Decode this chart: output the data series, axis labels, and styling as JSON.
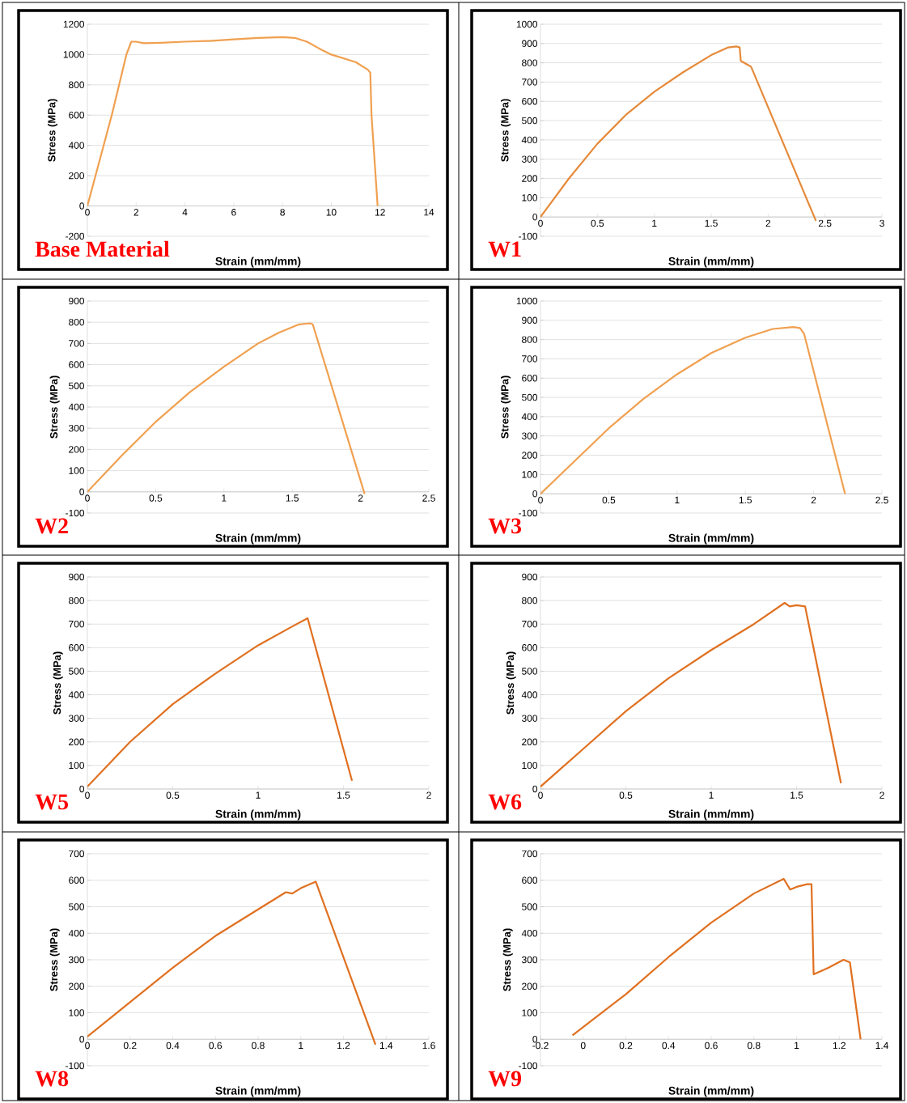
{
  "chart_data": [
    {
      "type": "line",
      "title": "Base Material",
      "xlabel": "Strain (mm/mm)",
      "ylabel": "Stress (MPa)",
      "color": "#f0a050",
      "grid": "y",
      "xlim": [
        0,
        14
      ],
      "ylim": [
        -200,
        1200
      ],
      "xticks": [
        0,
        2,
        4,
        6,
        8,
        10,
        12,
        14
      ],
      "yticks": [
        -200,
        0,
        200,
        400,
        600,
        800,
        1000,
        1200
      ],
      "x": [
        0,
        1.0,
        1.6,
        1.8,
        2.0,
        2.3,
        3,
        4,
        5,
        6,
        7,
        8,
        8.5,
        9,
        9.5,
        10,
        11,
        11.5,
        11.6,
        11.65,
        11.9
      ],
      "values": [
        0,
        600,
        1000,
        1085,
        1085,
        1075,
        1078,
        1085,
        1090,
        1100,
        1110,
        1115,
        1110,
        1085,
        1040,
        1000,
        950,
        900,
        880,
        600,
        0
      ]
    },
    {
      "type": "line",
      "title": "W1",
      "xlabel": "Strain (mm/mm)",
      "ylabel": "Stress (MPa)",
      "color": "#e68a3a",
      "grid": "y",
      "xlim": [
        0,
        3
      ],
      "ylim": [
        -100,
        1000
      ],
      "xticks": [
        0,
        0.5,
        1,
        1.5,
        2,
        2.5,
        3
      ],
      "yticks": [
        -100,
        0,
        100,
        200,
        300,
        400,
        500,
        600,
        700,
        800,
        900,
        1000
      ],
      "x": [
        0,
        0.25,
        0.5,
        0.75,
        1,
        1.25,
        1.5,
        1.65,
        1.72,
        1.75,
        1.76,
        1.82,
        1.85,
        2.42
      ],
      "values": [
        0,
        200,
        380,
        530,
        650,
        750,
        840,
        880,
        885,
        880,
        810,
        790,
        780,
        -20
      ]
    },
    {
      "type": "line",
      "title": "W2",
      "xlabel": "Strain (mm/mm)",
      "ylabel": "Stress (MPa)",
      "color": "#f0a050",
      "grid": "y",
      "xlim": [
        0,
        2.5
      ],
      "ylim": [
        -100,
        900
      ],
      "xticks": [
        0,
        0.5,
        1,
        1.5,
        2,
        2.5
      ],
      "yticks": [
        -100,
        0,
        100,
        200,
        300,
        400,
        500,
        600,
        700,
        800,
        900
      ],
      "x": [
        0,
        0.25,
        0.5,
        0.75,
        1,
        1.25,
        1.4,
        1.55,
        1.63,
        1.65,
        2.03
      ],
      "values": [
        0,
        170,
        330,
        470,
        590,
        700,
        750,
        790,
        795,
        790,
        -10
      ]
    },
    {
      "type": "line",
      "title": "W3",
      "xlabel": "Strain (mm/mm)",
      "ylabel": "Stress (MPa)",
      "color": "#f0a050",
      "grid": "y",
      "xlim": [
        0,
        2.5
      ],
      "ylim": [
        -100,
        1000
      ],
      "xticks": [
        0,
        0.5,
        1,
        1.5,
        2,
        2.5
      ],
      "yticks": [
        -100,
        0,
        100,
        200,
        300,
        400,
        500,
        600,
        700,
        800,
        900,
        1000
      ],
      "x": [
        0,
        0.25,
        0.5,
        0.75,
        1,
        1.25,
        1.5,
        1.7,
        1.85,
        1.9,
        1.93,
        2.23
      ],
      "values": [
        0,
        170,
        340,
        490,
        620,
        730,
        810,
        855,
        865,
        860,
        830,
        0
      ]
    },
    {
      "type": "line",
      "title": "W5",
      "xlabel": "Strain (mm/mm)",
      "ylabel": "Stress (MPa)",
      "color": "#e07020",
      "grid": "y",
      "xlim": [
        0,
        2
      ],
      "ylim": [
        0,
        900
      ],
      "xticks": [
        0,
        0.5,
        1,
        1.5,
        2
      ],
      "yticks": [
        0,
        100,
        200,
        300,
        400,
        500,
        600,
        700,
        800,
        900
      ],
      "x": [
        0,
        0.25,
        0.5,
        0.75,
        1,
        1.2,
        1.29,
        1.55
      ],
      "values": [
        10,
        200,
        360,
        490,
        610,
        690,
        725,
        35
      ]
    },
    {
      "type": "line",
      "title": "W6",
      "xlabel": "Strain (mm/mm)",
      "ylabel": "Stress (MPa)",
      "color": "#e07020",
      "grid": "y",
      "xlim": [
        0,
        2
      ],
      "ylim": [
        0,
        900
      ],
      "xticks": [
        0,
        0.5,
        1,
        1.5,
        2
      ],
      "yticks": [
        0,
        100,
        200,
        300,
        400,
        500,
        600,
        700,
        800,
        900
      ],
      "x": [
        0,
        0.25,
        0.5,
        0.75,
        1,
        1.25,
        1.43,
        1.46,
        1.5,
        1.55,
        1.76
      ],
      "values": [
        10,
        170,
        330,
        470,
        590,
        700,
        790,
        775,
        780,
        775,
        25
      ]
    },
    {
      "type": "line",
      "title": "W8",
      "xlabel": "Strain (mm/mm)",
      "ylabel": "Stress (MPa)",
      "color": "#e07020",
      "grid": "y",
      "xlim": [
        0,
        1.6
      ],
      "ylim": [
        -100,
        700
      ],
      "xticks": [
        0,
        0.2,
        0.4,
        0.6,
        0.8,
        1,
        1.2,
        1.4,
        1.6
      ],
      "yticks": [
        -100,
        0,
        100,
        200,
        300,
        400,
        500,
        600,
        700
      ],
      "x": [
        0,
        0.2,
        0.4,
        0.6,
        0.8,
        0.93,
        0.96,
        1.0,
        1.07,
        1.35
      ],
      "values": [
        10,
        140,
        270,
        390,
        490,
        555,
        550,
        570,
        595,
        -20
      ]
    },
    {
      "type": "line",
      "title": "W9",
      "xlabel": "Strain (mm/mm)",
      "ylabel": "Stress (MPa)",
      "color": "#e07020",
      "grid": "y",
      "xlim": [
        -0.2,
        1.4
      ],
      "ylim": [
        -100,
        700
      ],
      "xticks": [
        -0.2,
        0,
        0.2,
        0.4,
        0.6,
        0.8,
        1,
        1.2,
        1.4
      ],
      "yticks": [
        -100,
        0,
        100,
        200,
        300,
        400,
        500,
        600,
        700
      ],
      "x": [
        -0.05,
        0.2,
        0.4,
        0.6,
        0.8,
        0.94,
        0.97,
        1.0,
        1.05,
        1.07,
        1.08,
        1.15,
        1.22,
        1.25,
        1.3
      ],
      "values": [
        15,
        170,
        310,
        440,
        550,
        605,
        565,
        575,
        585,
        585,
        245,
        270,
        300,
        290,
        0
      ]
    }
  ]
}
